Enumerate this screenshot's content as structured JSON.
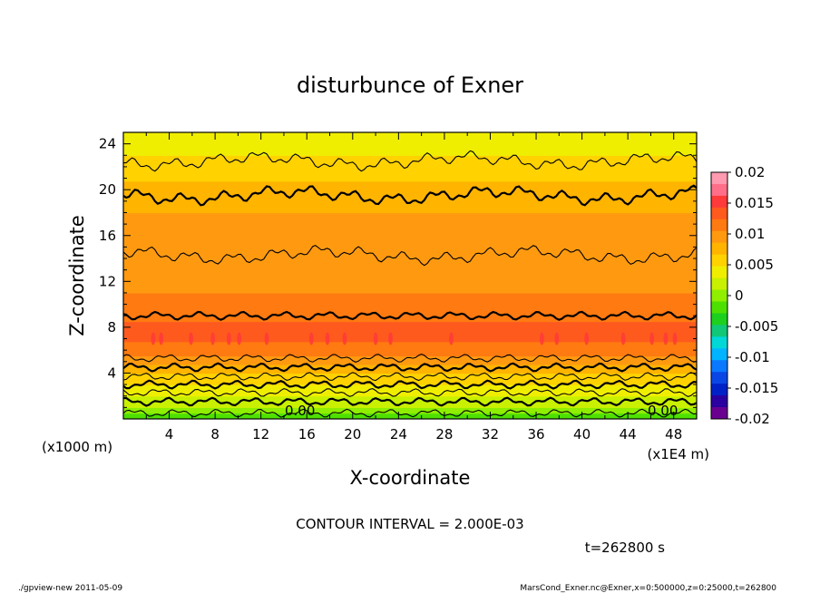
{
  "chart_data": {
    "type": "contour",
    "title": "disturbunce of Exner",
    "xlabel": "X-coordinate",
    "ylabel": "Z-coordinate",
    "x_unit": "(x1E4 m)",
    "y_unit": "(x1000 m)",
    "xlim": [
      0,
      50
    ],
    "ylim": [
      0,
      25
    ],
    "x_ticks": [
      4,
      8,
      12,
      16,
      20,
      24,
      28,
      32,
      36,
      40,
      44,
      48
    ],
    "y_ticks": [
      4,
      8,
      12,
      16,
      20,
      24
    ],
    "colorbar": {
      "range": [
        -0.02,
        0.02
      ],
      "tick_labels": [
        "0.02",
        "0.015",
        "0.01",
        "0.005",
        "0",
        "-0.005",
        "-0.01",
        "-0.015",
        "-0.02"
      ],
      "colors": [
        "#ff9bb0",
        "#ff6f8a",
        "#ff3a3a",
        "#ff5a1e",
        "#ff7a10",
        "#ff9a10",
        "#ffb400",
        "#ffd200",
        "#f0ee00",
        "#c8f000",
        "#90ee00",
        "#4ee000",
        "#1ed01e",
        "#10c878",
        "#00d8d8",
        "#00b4ff",
        "#0a78ff",
        "#0a46e6",
        "#0020c8",
        "#2a00a0",
        "#6a0090"
      ]
    },
    "contour_labels": [
      "0.00",
      "0.00"
    ],
    "vertical_profile": [
      {
        "z": 0.0,
        "value": -0.004
      },
      {
        "z": 0.5,
        "value": -0.002
      },
      {
        "z": 1.0,
        "value": 0.0
      },
      {
        "z": 2.0,
        "value": 0.002
      },
      {
        "z": 3.0,
        "value": 0.004
      },
      {
        "z": 4.0,
        "value": 0.006
      },
      {
        "z": 5.0,
        "value": 0.009
      },
      {
        "z": 6.0,
        "value": 0.011
      },
      {
        "z": 7.0,
        "value": 0.0125
      },
      {
        "z": 8.5,
        "value": 0.012
      },
      {
        "z": 10.0,
        "value": 0.0105
      },
      {
        "z": 12.0,
        "value": 0.0095
      },
      {
        "z": 14.0,
        "value": 0.009
      },
      {
        "z": 16.0,
        "value": 0.0085
      },
      {
        "z": 18.0,
        "value": 0.008
      },
      {
        "z": 20.0,
        "value": 0.0065
      },
      {
        "z": 22.0,
        "value": 0.005
      },
      {
        "z": 23.5,
        "value": 0.0035
      },
      {
        "z": 25.0,
        "value": 0.002
      }
    ],
    "contour_line_levels_z": [
      0.5,
      1.5,
      2.3,
      3.0,
      3.7,
      4.5,
      5.3,
      9.0,
      14.3,
      19.5,
      22.5
    ]
  },
  "footer": {
    "contour_interval": "CONTOUR INTERVAL = 2.000E-03",
    "time": "t=262800 s",
    "left_note": "./gpview-new   2011-05-09",
    "right_note": "MarsCond_Exner.nc@Exner,x=0:500000,z=0:25000,t=262800"
  }
}
